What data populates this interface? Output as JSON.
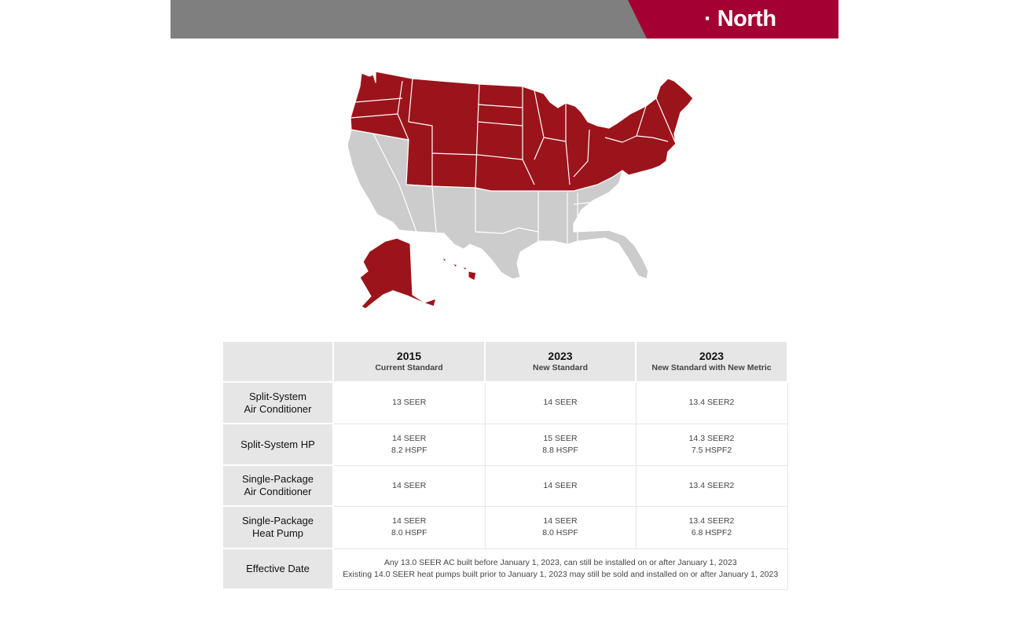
{
  "header": {
    "region_title": "· North",
    "colors": {
      "banner_gray": "#7f7f7f",
      "banner_red": "#a50034"
    }
  },
  "map": {
    "highlight_color": "#9b141b",
    "other_color": "#cccccc",
    "highlighted_region": "North"
  },
  "table": {
    "columns": [
      {
        "year": "2015",
        "label": "Current Standard"
      },
      {
        "year": "2023",
        "label": "New Standard"
      },
      {
        "year": "2023",
        "label": "New Standard with New Metric"
      }
    ],
    "rows": [
      {
        "label_lines": [
          "Split-System",
          "Air Conditioner"
        ],
        "cells": [
          [
            "13 SEER"
          ],
          [
            "14 SEER"
          ],
          [
            "13.4 SEER2"
          ]
        ]
      },
      {
        "label_lines": [
          "Split-System HP"
        ],
        "cells": [
          [
            "14 SEER",
            "8.2 HSPF"
          ],
          [
            "15 SEER",
            "8.8 HSPF"
          ],
          [
            "14.3 SEER2",
            "7.5 HSPF2"
          ]
        ]
      },
      {
        "label_lines": [
          "Single-Package",
          "Air Conditioner"
        ],
        "cells": [
          [
            "14 SEER"
          ],
          [
            "14 SEER"
          ],
          [
            "13.4 SEER2"
          ]
        ]
      },
      {
        "label_lines": [
          "Single-Package",
          "Heat Pump"
        ],
        "cells": [
          [
            "14 SEER",
            "8.0 HSPF"
          ],
          [
            "14 SEER",
            "8.0 HSPF"
          ],
          [
            "13.4 SEER2",
            "6.8 HSPF2"
          ]
        ]
      }
    ],
    "effective": {
      "label": "Effective Date",
      "lines": [
        "Any 13.0 SEER AC built before January 1, 2023, can still be installed on or after January 1, 2023",
        "Existing 14.0 SEER heat pumps built prior to January 1, 2023 may still be sold and installed on or after January 1, 2023"
      ]
    }
  }
}
